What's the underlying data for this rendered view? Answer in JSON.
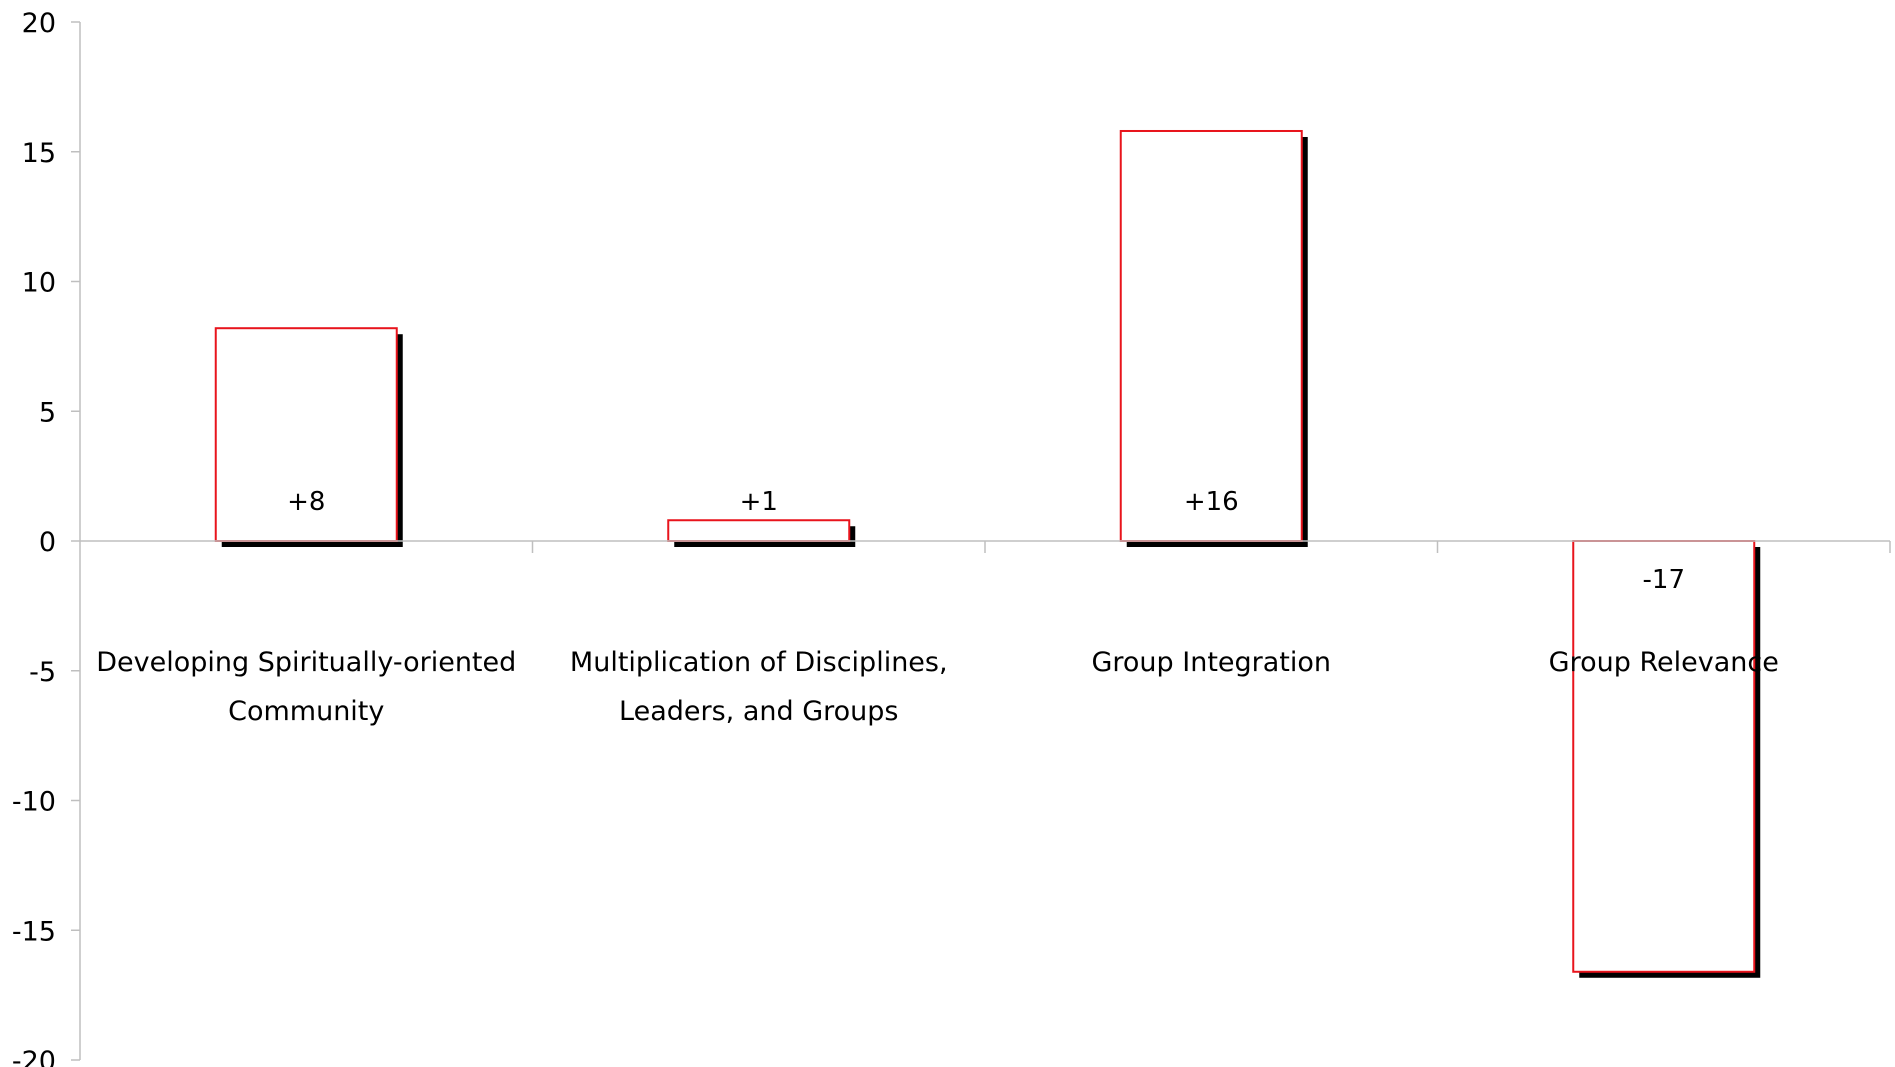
{
  "chart_data": {
    "type": "bar",
    "categories": [
      "Developing Spiritually-oriented Community",
      "Multiplication of Disciplines, Leaders, and Groups",
      "Group Integration",
      "Group Relevance"
    ],
    "category_label_lines": [
      [
        "Developing Spiritually-oriented",
        "Community"
      ],
      [
        "Multiplication of Disciplines,",
        "Leaders, and Groups"
      ],
      [
        "Group Integration"
      ],
      [
        "Group Relevance"
      ]
    ],
    "values": [
      8.2,
      0.8,
      15.8,
      -16.6
    ],
    "data_labels": [
      "+8",
      "+1",
      "+16",
      "-17"
    ],
    "ylim": [
      -20,
      20
    ],
    "yticks": [
      20,
      15,
      10,
      5,
      0,
      -5,
      -10,
      -15,
      -20
    ],
    "ytick_labels": [
      "20",
      "15",
      "10",
      "5",
      "0",
      "-5",
      "-10",
      "-15",
      "-20"
    ],
    "title": "",
    "xlabel": "",
    "ylabel": "",
    "grid": false,
    "legend": "none",
    "colors": {
      "bar_fill": "#ffffff",
      "bar_stroke": "#e8141c",
      "bar_shadow": "#000000",
      "axis": "#bfbfbf",
      "text": "#000000"
    }
  }
}
